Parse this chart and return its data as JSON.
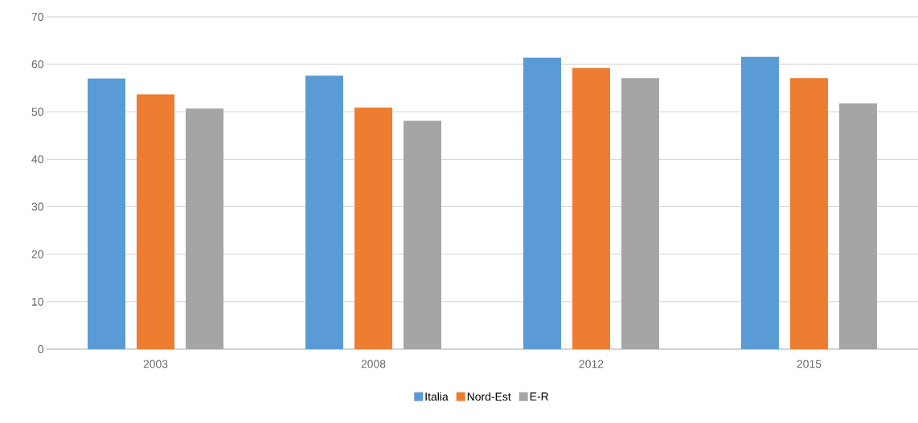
{
  "chart_data": {
    "type": "bar",
    "categories": [
      "2003",
      "2008",
      "2012",
      "2015"
    ],
    "series": [
      {
        "name": "Italia",
        "color": "#5b9bd5",
        "values": [
          57.0,
          57.6,
          61.4,
          61.6
        ]
      },
      {
        "name": "Nord-Est",
        "color": "#ed7d31",
        "values": [
          53.7,
          50.9,
          59.2,
          57.1
        ]
      },
      {
        "name": "E-R",
        "color": "#a5a5a5",
        "values": [
          50.7,
          48.1,
          57.1,
          51.8
        ]
      }
    ],
    "ylim": [
      0,
      70
    ],
    "yticks": [
      0,
      10,
      20,
      30,
      40,
      50,
      60,
      70
    ],
    "grid": "y",
    "legend": "bottom"
  }
}
